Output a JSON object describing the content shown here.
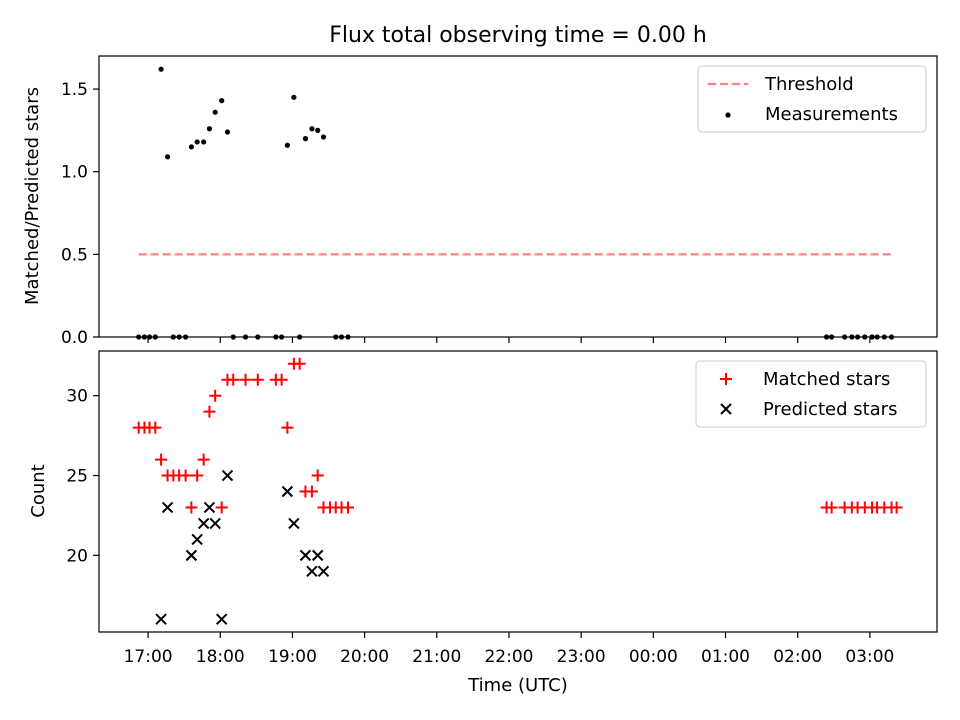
{
  "chart_data": [
    {
      "type": "scatter",
      "title": "Flux total observing time = 0.00 h",
      "xlabel": "",
      "ylabel": "Matched/Predicted stars",
      "xlim": [
        16.32,
        27.93
      ],
      "ylim": [
        0.0,
        1.7
      ],
      "yticks": [
        0.0,
        0.5,
        1.0,
        1.5
      ],
      "ytick_labels": [
        "0.0",
        "0.5",
        "1.0",
        "1.5"
      ],
      "legend_position": "upper right",
      "series": [
        {
          "name": "Threshold",
          "kind": "line",
          "style": "dashed",
          "color": "#ff8080",
          "x": [
            16.87,
            27.3
          ],
          "y": [
            0.5,
            0.5
          ]
        },
        {
          "name": "Measurements",
          "kind": "scatter",
          "marker": "dot",
          "color": "#000000",
          "points": [
            [
              16.87,
              0.0
            ],
            [
              16.95,
              0.0
            ],
            [
              17.02,
              0.0
            ],
            [
              17.1,
              0.0
            ],
            [
              17.18,
              1.62
            ],
            [
              17.27,
              1.09
            ],
            [
              17.35,
              0.0
            ],
            [
              17.43,
              0.0
            ],
            [
              17.52,
              0.0
            ],
            [
              17.6,
              1.15
            ],
            [
              17.68,
              1.18
            ],
            [
              17.77,
              1.18
            ],
            [
              17.85,
              1.26
            ],
            [
              17.93,
              1.36
            ],
            [
              18.02,
              1.43
            ],
            [
              18.1,
              1.24
            ],
            [
              18.18,
              0.0
            ],
            [
              18.35,
              0.0
            ],
            [
              18.52,
              0.0
            ],
            [
              18.77,
              0.0
            ],
            [
              18.85,
              0.0
            ],
            [
              18.93,
              1.16
            ],
            [
              19.02,
              1.45
            ],
            [
              19.1,
              0.0
            ],
            [
              19.18,
              1.2
            ],
            [
              19.27,
              1.26
            ],
            [
              19.35,
              1.25
            ],
            [
              19.43,
              1.21
            ],
            [
              19.6,
              0.0
            ],
            [
              19.68,
              0.0
            ],
            [
              19.77,
              0.0
            ],
            [
              26.4,
              0.0
            ],
            [
              26.47,
              0.0
            ],
            [
              26.65,
              0.0
            ],
            [
              26.75,
              0.0
            ],
            [
              26.83,
              0.0
            ],
            [
              26.93,
              0.0
            ],
            [
              27.03,
              0.0
            ],
            [
              27.1,
              0.0
            ],
            [
              27.2,
              0.0
            ],
            [
              27.3,
              0.0
            ]
          ]
        }
      ]
    },
    {
      "type": "scatter",
      "title": "",
      "xlabel": "Time (UTC)",
      "ylabel": "Count",
      "xlim": [
        16.32,
        27.93
      ],
      "ylim": [
        15.2,
        32.8
      ],
      "yticks": [
        20,
        25,
        30
      ],
      "ytick_labels": [
        "20",
        "25",
        "30"
      ],
      "xticks": [
        17,
        18,
        19,
        20,
        21,
        22,
        23,
        24,
        25,
        26,
        27
      ],
      "xtick_labels": [
        "17:00",
        "18:00",
        "19:00",
        "20:00",
        "21:00",
        "22:00",
        "23:00",
        "00:00",
        "01:00",
        "02:00",
        "03:00"
      ],
      "legend_position": "upper right",
      "series": [
        {
          "name": "Matched stars",
          "kind": "scatter",
          "marker": "plus",
          "color": "#ff0000",
          "points": [
            [
              16.87,
              28
            ],
            [
              16.95,
              28
            ],
            [
              17.02,
              28
            ],
            [
              17.1,
              28
            ],
            [
              17.18,
              26
            ],
            [
              17.27,
              25
            ],
            [
              17.35,
              25
            ],
            [
              17.43,
              25
            ],
            [
              17.52,
              25
            ],
            [
              17.6,
              23
            ],
            [
              17.68,
              25
            ],
            [
              17.77,
              26
            ],
            [
              17.85,
              29
            ],
            [
              17.93,
              30
            ],
            [
              18.02,
              23
            ],
            [
              18.1,
              31
            ],
            [
              18.18,
              31
            ],
            [
              18.35,
              31
            ],
            [
              18.52,
              31
            ],
            [
              18.77,
              31
            ],
            [
              18.85,
              31
            ],
            [
              18.93,
              28
            ],
            [
              19.02,
              32
            ],
            [
              19.1,
              32
            ],
            [
              19.18,
              24
            ],
            [
              19.27,
              24
            ],
            [
              19.35,
              25
            ],
            [
              19.43,
              23
            ],
            [
              19.52,
              23
            ],
            [
              19.6,
              23
            ],
            [
              19.68,
              23
            ],
            [
              19.77,
              23
            ],
            [
              26.4,
              23
            ],
            [
              26.47,
              23
            ],
            [
              26.65,
              23
            ],
            [
              26.75,
              23
            ],
            [
              26.83,
              23
            ],
            [
              26.93,
              23
            ],
            [
              27.03,
              23
            ],
            [
              27.1,
              23
            ],
            [
              27.2,
              23
            ],
            [
              27.3,
              23
            ],
            [
              27.37,
              23
            ]
          ]
        },
        {
          "name": "Predicted stars",
          "kind": "scatter",
          "marker": "x",
          "color": "#000000",
          "points": [
            [
              17.18,
              16
            ],
            [
              17.27,
              23
            ],
            [
              17.6,
              20
            ],
            [
              17.68,
              21
            ],
            [
              17.77,
              22
            ],
            [
              17.85,
              23
            ],
            [
              17.93,
              22
            ],
            [
              18.02,
              16
            ],
            [
              18.1,
              25
            ],
            [
              18.93,
              24
            ],
            [
              19.02,
              22
            ],
            [
              19.18,
              20
            ],
            [
              19.27,
              19
            ],
            [
              19.35,
              20
            ],
            [
              19.43,
              19
            ]
          ]
        }
      ]
    }
  ]
}
